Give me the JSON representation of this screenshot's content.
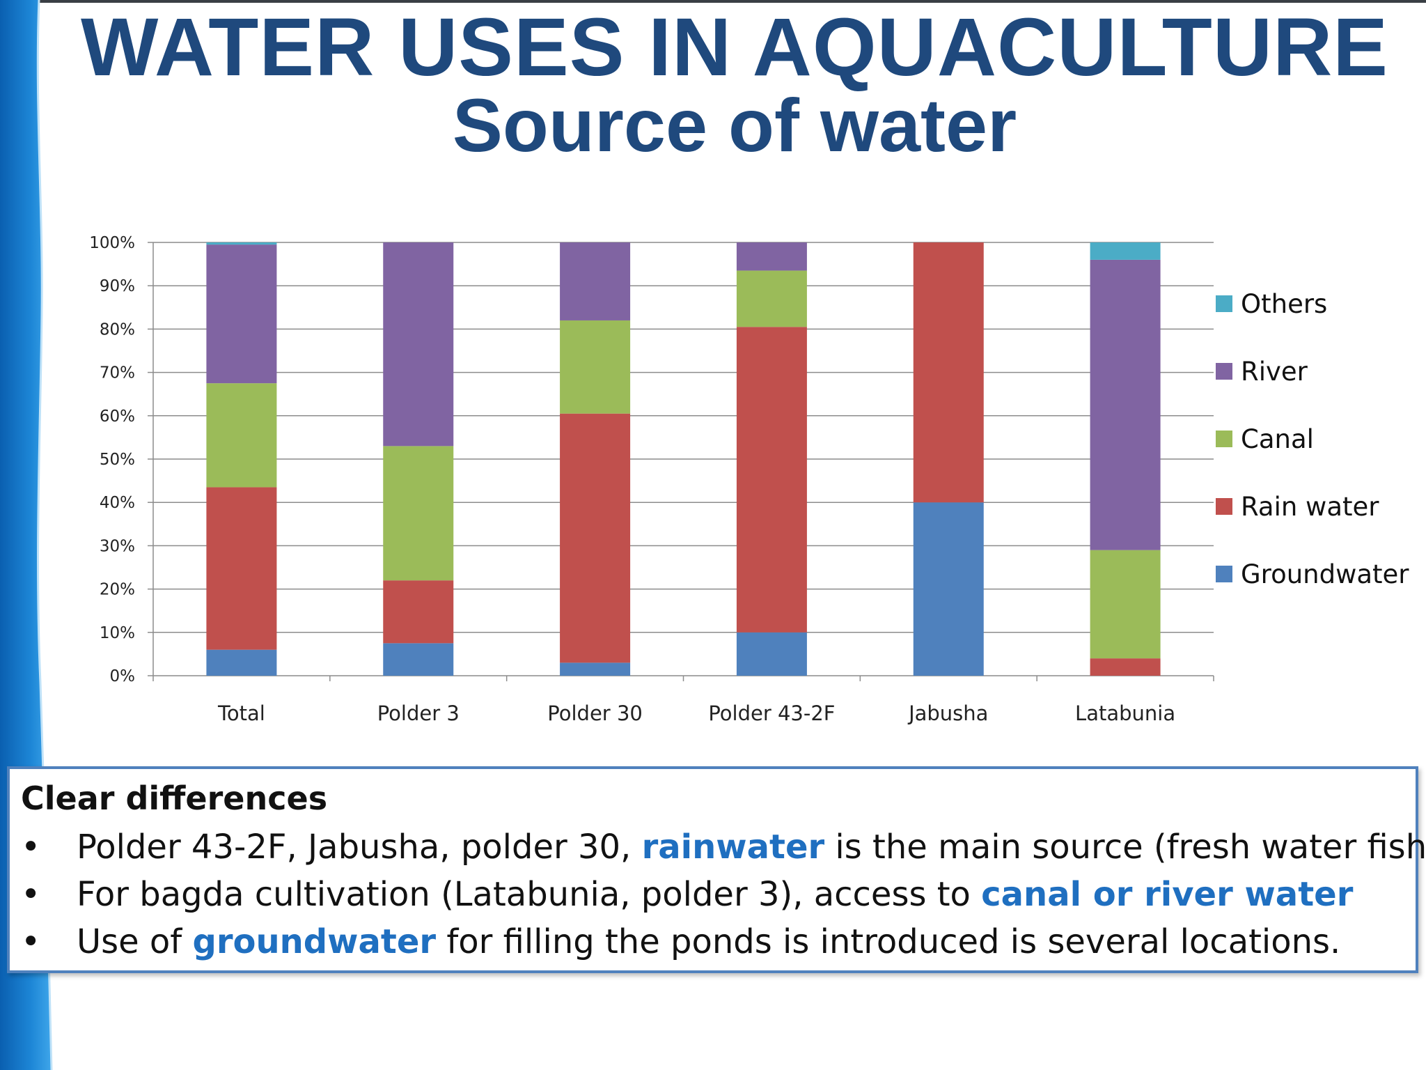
{
  "slide": {
    "title": "WATER USES IN AQUACULTURE",
    "subtitle": "Source of water"
  },
  "colors": {
    "title": "#1f497d",
    "highlight": "#1f6fc0",
    "groundwater": "#4f81bd",
    "rain_water": "#c0504d",
    "canal": "#9bbb59",
    "river": "#8064a2",
    "others": "#4bacc6"
  },
  "chart_data": {
    "type": "bar",
    "stacked": true,
    "percent": true,
    "categories": [
      "Total",
      "Polder 3",
      "Polder 30",
      "Polder 43-2F",
      "Jabusha",
      "Latabunia"
    ],
    "series": [
      {
        "name": "Groundwater",
        "color": "#4f81bd",
        "values": [
          6,
          7.5,
          3,
          10,
          40,
          0
        ]
      },
      {
        "name": "Rain water",
        "color": "#c0504d",
        "values": [
          37.5,
          14.5,
          57.5,
          70.5,
          60,
          4
        ]
      },
      {
        "name": "Canal",
        "color": "#9bbb59",
        "values": [
          24,
          31,
          21.5,
          13,
          0,
          25
        ]
      },
      {
        "name": "River",
        "color": "#8064a2",
        "values": [
          32,
          47,
          18,
          6.5,
          0,
          67
        ]
      },
      {
        "name": "Others",
        "color": "#4bacc6",
        "values": [
          0.5,
          0,
          0,
          0,
          0,
          4
        ]
      }
    ],
    "ylim": [
      0,
      100
    ],
    "yticks": [
      "0%",
      "10%",
      "20%",
      "30%",
      "40%",
      "50%",
      "60%",
      "70%",
      "80%",
      "90%",
      "100%"
    ],
    "grid": true,
    "legend": "right",
    "legend_order": [
      "Others",
      "River",
      "Canal",
      "Rain water",
      "Groundwater"
    ]
  },
  "notes": {
    "heading": "Clear differences",
    "bullet_symbol": "•",
    "bullets": [
      {
        "before": "Polder 43-2F, Jabusha, polder 30, ",
        "highlight": "rainwater",
        "after": " is the main source (fresh water fishes)"
      },
      {
        "before": "For bagda cultivation (Latabunia, polder 3), access to ",
        "highlight": "canal or river water",
        "after": ""
      },
      {
        "before": "Use of ",
        "highlight": "groundwater",
        "after": "  for filling the ponds is introduced is several locations."
      }
    ]
  }
}
